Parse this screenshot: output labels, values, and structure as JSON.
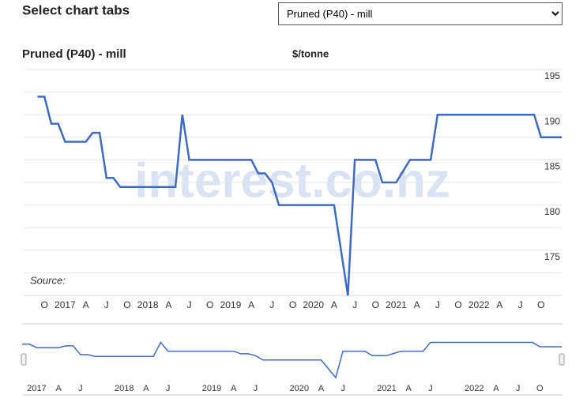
{
  "header": {
    "title": "Select chart tabs",
    "dropdown": "Pruned (P40) - mill"
  },
  "chart_data": {
    "type": "line",
    "title": "Pruned (P40) - mill",
    "unit": "$/tonne",
    "source": "Source:",
    "watermark": "interest.co.nz",
    "x": [
      "2016-09",
      "2016-10",
      "2016-11",
      "2016-12",
      "2017-01",
      "2017-02",
      "2017-03",
      "2017-04",
      "2017-05",
      "2017-06",
      "2017-07",
      "2017-08",
      "2017-09",
      "2017-10",
      "2017-11",
      "2017-12",
      "2018-01",
      "2018-02",
      "2018-03",
      "2018-04",
      "2018-05",
      "2018-06",
      "2018-07",
      "2018-08",
      "2018-09",
      "2018-10",
      "2018-11",
      "2018-12",
      "2019-01",
      "2019-02",
      "2019-03",
      "2019-04",
      "2019-05",
      "2019-06",
      "2019-07",
      "2019-08",
      "2019-09",
      "2019-10",
      "2019-11",
      "2019-12",
      "2020-01",
      "2020-02",
      "2020-03",
      "2020-04",
      "2020-05",
      "2020-06",
      "2020-07",
      "2020-08",
      "2020-09",
      "2020-10",
      "2020-11",
      "2020-12",
      "2021-01",
      "2021-02",
      "2021-03",
      "2021-04",
      "2021-05",
      "2021-06",
      "2021-07",
      "2021-08",
      "2021-09",
      "2021-10",
      "2021-11",
      "2021-12",
      "2022-01",
      "2022-02",
      "2022-03",
      "2022-04",
      "2022-05",
      "2022-06",
      "2022-07",
      "2022-08",
      "2022-09",
      "2022-10",
      "2022-11",
      "2022-12",
      "2023-01"
    ],
    "series": [
      {
        "name": "Pruned (P40) - mill",
        "color": "#3d6bc4",
        "values": [
          192,
          192,
          189,
          189,
          187,
          187,
          187,
          187,
          188,
          188,
          183,
          183,
          182,
          182,
          182,
          182,
          182,
          182,
          182,
          182,
          182,
          190,
          185,
          185,
          185,
          185,
          185,
          185,
          185,
          185,
          185,
          185,
          183.5,
          183.5,
          182.5,
          180,
          180,
          180,
          180,
          180,
          180,
          180,
          180,
          180,
          175,
          170,
          185,
          185,
          185,
          185,
          182.5,
          182.5,
          182.5,
          183.75,
          185,
          185,
          185,
          185,
          190,
          190,
          190,
          190,
          190,
          190,
          190,
          190,
          190,
          190,
          190,
          190,
          190,
          190,
          190,
          187.5,
          187.5,
          187.5,
          187.5
        ]
      }
    ],
    "xlim": [
      "2016-07",
      "2023-01"
    ],
    "xticks": [
      {
        "value": "2016-10",
        "label": "O"
      },
      {
        "value": "2017-01",
        "label": "2017"
      },
      {
        "value": "2017-04",
        "label": "A"
      },
      {
        "value": "2017-07",
        "label": "J"
      },
      {
        "value": "2017-10",
        "label": "O"
      },
      {
        "value": "2018-01",
        "label": "2018"
      },
      {
        "value": "2018-04",
        "label": "A"
      },
      {
        "value": "2018-07",
        "label": "J"
      },
      {
        "value": "2018-10",
        "label": "O"
      },
      {
        "value": "2019-01",
        "label": "2019"
      },
      {
        "value": "2019-04",
        "label": "A"
      },
      {
        "value": "2019-07",
        "label": "J"
      },
      {
        "value": "2019-10",
        "label": "O"
      },
      {
        "value": "2020-01",
        "label": "2020"
      },
      {
        "value": "2020-04",
        "label": "A"
      },
      {
        "value": "2020-07",
        "label": "J"
      },
      {
        "value": "2020-10",
        "label": "O"
      },
      {
        "value": "2021-01",
        "label": "2021"
      },
      {
        "value": "2021-04",
        "label": "A"
      },
      {
        "value": "2021-07",
        "label": "J"
      },
      {
        "value": "2021-10",
        "label": "O"
      },
      {
        "value": "2022-01",
        "label": "2022"
      },
      {
        "value": "2022-04",
        "label": "A"
      },
      {
        "value": "2022-07",
        "label": "J"
      },
      {
        "value": "2022-10",
        "label": "O"
      }
    ],
    "ylim": [
      170,
      195
    ],
    "yticks": [
      175,
      180,
      185,
      190,
      195
    ],
    "y_minor_grid": [
      172.5,
      177.5,
      182.5,
      187.5,
      192.5
    ],
    "grid": true,
    "navigator": {
      "xlim": [
        "2016-11",
        "2023-01"
      ],
      "ylim": [
        170,
        192
      ],
      "xticks": [
        {
          "value": "2017-01",
          "label": "2017"
        },
        {
          "value": "2017-04",
          "label": "A"
        },
        {
          "value": "2017-07",
          "label": "J"
        },
        {
          "value": "2018-01",
          "label": "2018"
        },
        {
          "value": "2018-04",
          "label": "A"
        },
        {
          "value": "2018-07",
          "label": "J"
        },
        {
          "value": "2019-01",
          "label": "2019"
        },
        {
          "value": "2019-04",
          "label": "A"
        },
        {
          "value": "2019-07",
          "label": "J"
        },
        {
          "value": "2020-01",
          "label": "2020"
        },
        {
          "value": "2020-04",
          "label": "A"
        },
        {
          "value": "2020-07",
          "label": "J"
        },
        {
          "value": "2021-01",
          "label": "2021"
        },
        {
          "value": "2021-04",
          "label": "A"
        },
        {
          "value": "2021-07",
          "label": "J"
        },
        {
          "value": "2022-01",
          "label": "2022"
        },
        {
          "value": "2022-04",
          "label": "A"
        },
        {
          "value": "2022-07",
          "label": "J"
        },
        {
          "value": "2022-10",
          "label": "O"
        }
      ]
    }
  }
}
